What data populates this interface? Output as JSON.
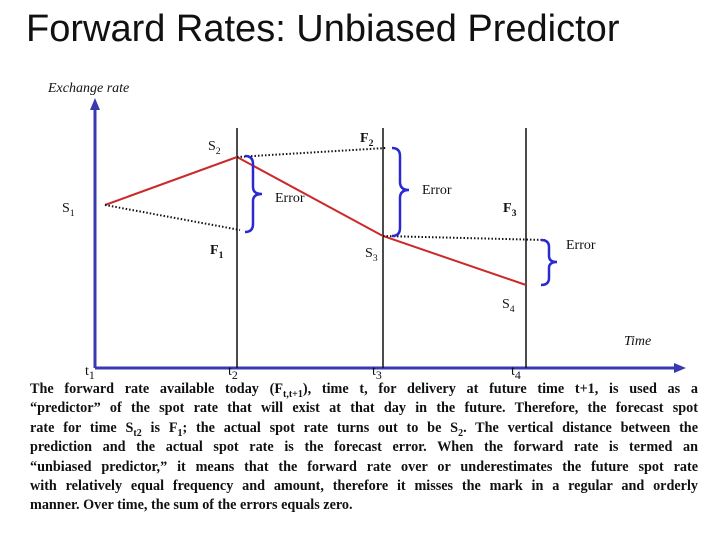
{
  "title": "Forward Rates: Unbiased Predictor",
  "y_axis_label": "Exchange rate",
  "x_axis_label": "Time",
  "labels": [
    {
      "text": "S",
      "sub": "2"
    },
    {
      "text": "F",
      "sub": "2"
    },
    {
      "text": "S",
      "sub": "1"
    },
    {
      "text": "Error"
    },
    {
      "text": "Error"
    },
    {
      "text": "F",
      "sub": "3"
    },
    {
      "text": "F",
      "sub": "1"
    },
    {
      "text": "S",
      "sub": "3"
    },
    {
      "text": "Error"
    },
    {
      "text": "S",
      "sub": "4"
    }
  ],
  "time_labels": [
    {
      "text": "t",
      "sub": "1"
    },
    {
      "text": "t",
      "sub": "2"
    },
    {
      "text": "t",
      "sub": "3"
    },
    {
      "text": "t",
      "sub": "4"
    }
  ],
  "paragraph": [
    [
      {
        "text": "The forward rate available today (F"
      },
      {
        "sub": "t,t+1"
      },
      {
        "text": "), time t, for delivery at future time t+1, is used as a"
      }
    ],
    [
      {
        "text": "“predictor” of the spot rate that will exist at that day in the future. Therefore, the forecast spot"
      }
    ],
    [
      {
        "text": "rate for time S"
      },
      {
        "sub": "t2"
      },
      {
        "text": " is F"
      },
      {
        "sub": "1"
      },
      {
        "text": "; the actual spot rate turns out to be S"
      },
      {
        "sub": "2"
      },
      {
        "text": ". The vertical distance between the"
      }
    ],
    [
      {
        "text": "prediction and the actual spot rate is the forecast error. When the forward rate is termed an"
      }
    ],
    [
      {
        "text": "“unbiased predictor,” it means that the forward rate over or underestimates the future spot rate"
      }
    ],
    [
      {
        "text": "with relatively equal frequency and amount, therefore it misses the mark in a regular and orderly"
      }
    ],
    [
      {
        "text": "manner. Over time, the sum of the errors equals zero."
      }
    ]
  ]
}
